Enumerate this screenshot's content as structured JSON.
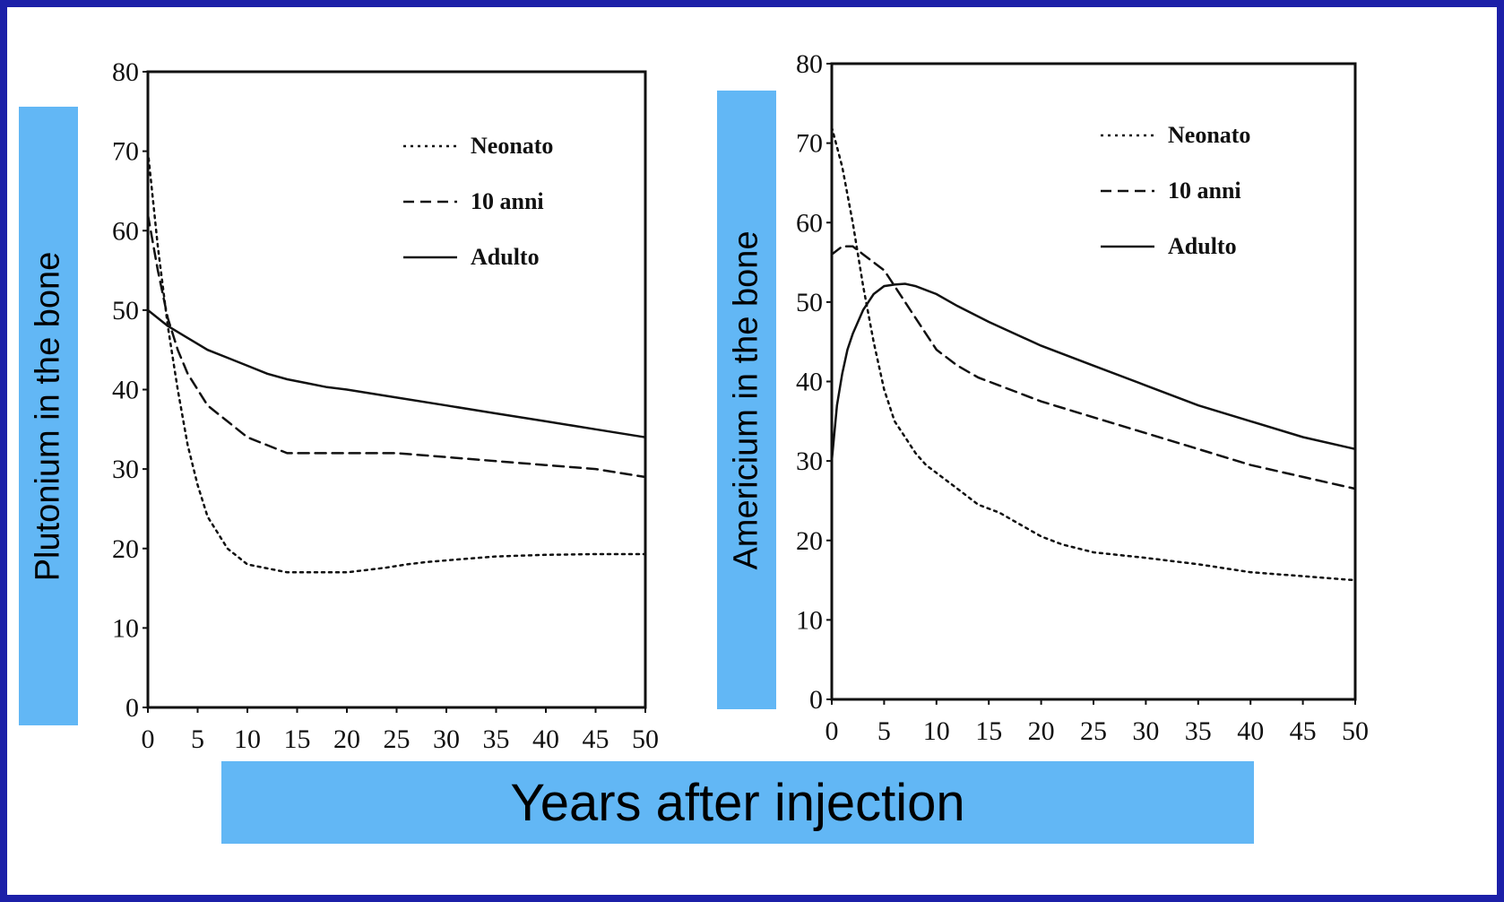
{
  "colors": {
    "frame": "#1c20a8",
    "label_box": "#62b7f5",
    "ink": "#111111"
  },
  "xlabel": "Years after injection",
  "chart_data": [
    {
      "type": "line",
      "ylabel": "Plutonium in the bone",
      "xlim": [
        0,
        50
      ],
      "ylim": [
        0,
        80
      ],
      "xticks": [
        "0",
        "5",
        "10",
        "15",
        "20",
        "25",
        "30",
        "35",
        "40",
        "45",
        "50"
      ],
      "yticks": [
        "0",
        "10",
        "20",
        "30",
        "40",
        "50",
        "60",
        "70",
        "80"
      ],
      "grid": false,
      "legend": "top-right",
      "series": [
        {
          "name": "Neonato",
          "style": "dotted",
          "x": [
            0,
            1,
            2,
            3,
            4,
            5,
            6,
            7,
            8,
            9,
            10,
            12,
            14,
            16,
            18,
            20,
            22,
            24,
            26,
            28,
            30,
            35,
            40,
            45,
            50
          ],
          "y": [
            70,
            58,
            48,
            40,
            33,
            28,
            24,
            22,
            20,
            19,
            18,
            17.5,
            17,
            17,
            17,
            17,
            17.3,
            17.6,
            18,
            18.3,
            18.5,
            19,
            19.2,
            19.3,
            19.3
          ]
        },
        {
          "name": "10 anni",
          "style": "dashed",
          "x": [
            0,
            1,
            2,
            3,
            4,
            5,
            6,
            7,
            8,
            9,
            10,
            12,
            14,
            16,
            18,
            20,
            25,
            30,
            35,
            40,
            45,
            50
          ],
          "y": [
            62,
            55,
            49,
            45,
            42,
            40,
            38,
            37,
            36,
            35,
            34,
            33,
            32,
            32,
            32,
            32,
            32,
            31.5,
            31,
            30.5,
            30,
            29
          ]
        },
        {
          "name": "Adulto",
          "style": "solid",
          "x": [
            0,
            2,
            4,
            6,
            8,
            10,
            12,
            14,
            16,
            18,
            20,
            25,
            30,
            35,
            40,
            45,
            50
          ],
          "y": [
            50,
            48,
            46.5,
            45,
            44,
            43,
            42,
            41.3,
            40.8,
            40.3,
            40,
            39,
            38,
            37,
            36,
            35,
            34
          ]
        }
      ]
    },
    {
      "type": "line",
      "ylabel": "Americium in the bone",
      "xlim": [
        0,
        50
      ],
      "ylim": [
        0,
        80
      ],
      "xticks": [
        "0",
        "5",
        "10",
        "15",
        "20",
        "25",
        "30",
        "35",
        "40",
        "45",
        "50"
      ],
      "yticks": [
        "0",
        "10",
        "20",
        "30",
        "40",
        "50",
        "60",
        "70",
        "80"
      ],
      "grid": false,
      "legend": "top-right",
      "series": [
        {
          "name": "Neonato",
          "style": "dotted",
          "x": [
            0,
            1,
            2,
            3,
            4,
            5,
            6,
            7,
            8,
            9,
            10,
            12,
            14,
            16,
            18,
            20,
            22,
            25,
            30,
            35,
            40,
            45,
            50
          ],
          "y": [
            72,
            67,
            60,
            52,
            45,
            39,
            35,
            33,
            31,
            29.5,
            28.5,
            26.5,
            24.5,
            23.5,
            22,
            20.5,
            19.5,
            18.5,
            17.8,
            17,
            16,
            15.5,
            15
          ]
        },
        {
          "name": "10 anni",
          "style": "dashed",
          "x": [
            0,
            1,
            2,
            3,
            4,
            5,
            6,
            7,
            8,
            9,
            10,
            12,
            14,
            16,
            18,
            20,
            25,
            30,
            35,
            40,
            45,
            50
          ],
          "y": [
            56,
            57,
            57,
            56,
            55,
            54,
            52,
            50,
            48,
            46,
            44,
            42,
            40.5,
            39.5,
            38.5,
            37.5,
            35.5,
            33.5,
            31.5,
            29.5,
            28,
            26.5
          ]
        },
        {
          "name": "Adulto",
          "style": "solid",
          "x": [
            0,
            0.5,
            1,
            1.5,
            2,
            3,
            4,
            5,
            6,
            7,
            8,
            10,
            12,
            15,
            20,
            25,
            30,
            35,
            40,
            45,
            50
          ],
          "y": [
            30,
            37,
            41,
            44,
            46,
            49,
            51,
            52,
            52.2,
            52.3,
            52,
            51,
            49.5,
            47.5,
            44.5,
            42,
            39.5,
            37,
            35,
            33,
            31.5
          ]
        }
      ]
    }
  ]
}
